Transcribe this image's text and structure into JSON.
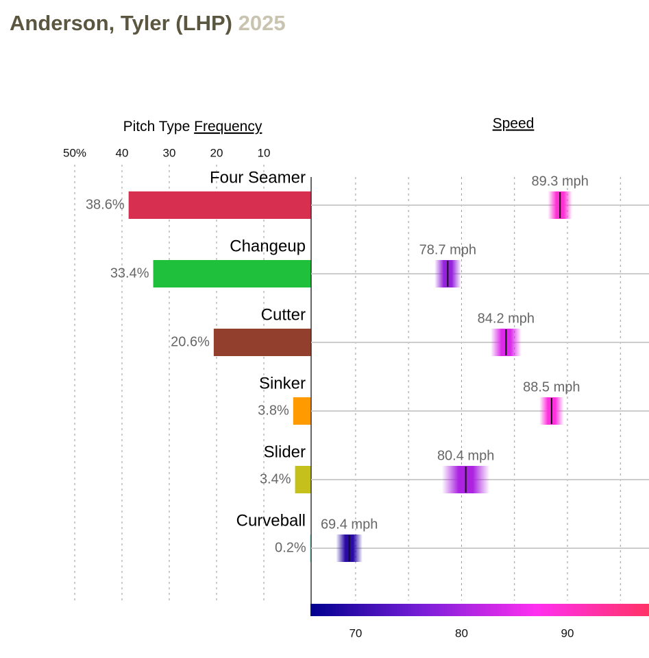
{
  "header": {
    "name": "Anderson, Tyler (LHP)",
    "year": "2025"
  },
  "chart_data": [
    {
      "type": "hbar",
      "title_prefix": "Pitch Type",
      "title_link": "Frequency",
      "categories": [
        "Four Seamer",
        "Changeup",
        "Cutter",
        "Sinker",
        "Slider",
        "Curveball"
      ],
      "values": [
        38.6,
        33.4,
        20.6,
        3.8,
        3.4,
        0.2
      ],
      "value_labels": [
        "38.6%",
        "33.4%",
        "20.6%",
        "3.8%",
        "3.4%",
        "0.2%"
      ],
      "colors": [
        "#d62f4f",
        "#1fc03c",
        "#923f2d",
        "#ff9a00",
        "#c5c01c",
        "#66dcd2"
      ],
      "xlim": [
        0,
        50
      ],
      "xticks": [
        {
          "value": 50,
          "label": "50%"
        },
        40,
        30,
        20,
        10
      ],
      "reversed": true,
      "grid": true
    },
    {
      "type": "speed",
      "title": "Speed",
      "values": [
        89.3,
        78.7,
        84.2,
        88.5,
        80.4,
        69.4
      ],
      "value_labels": [
        "89.3 mph",
        "78.7 mph",
        "84.2 mph",
        "88.5 mph",
        "80.4 mph",
        "69.4 mph"
      ],
      "spread": [
        2.3,
        2.5,
        2.9,
        2.3,
        4.5,
        2.5
      ],
      "xlim": [
        65.8,
        97.7
      ],
      "xticks": [
        70,
        80,
        90
      ],
      "minor_xticks": [
        75,
        85,
        95
      ],
      "colorscale": [
        "#00008e",
        "#7a1ed8",
        "#ff2ff0",
        "#ff3366"
      ],
      "grid": true
    }
  ]
}
